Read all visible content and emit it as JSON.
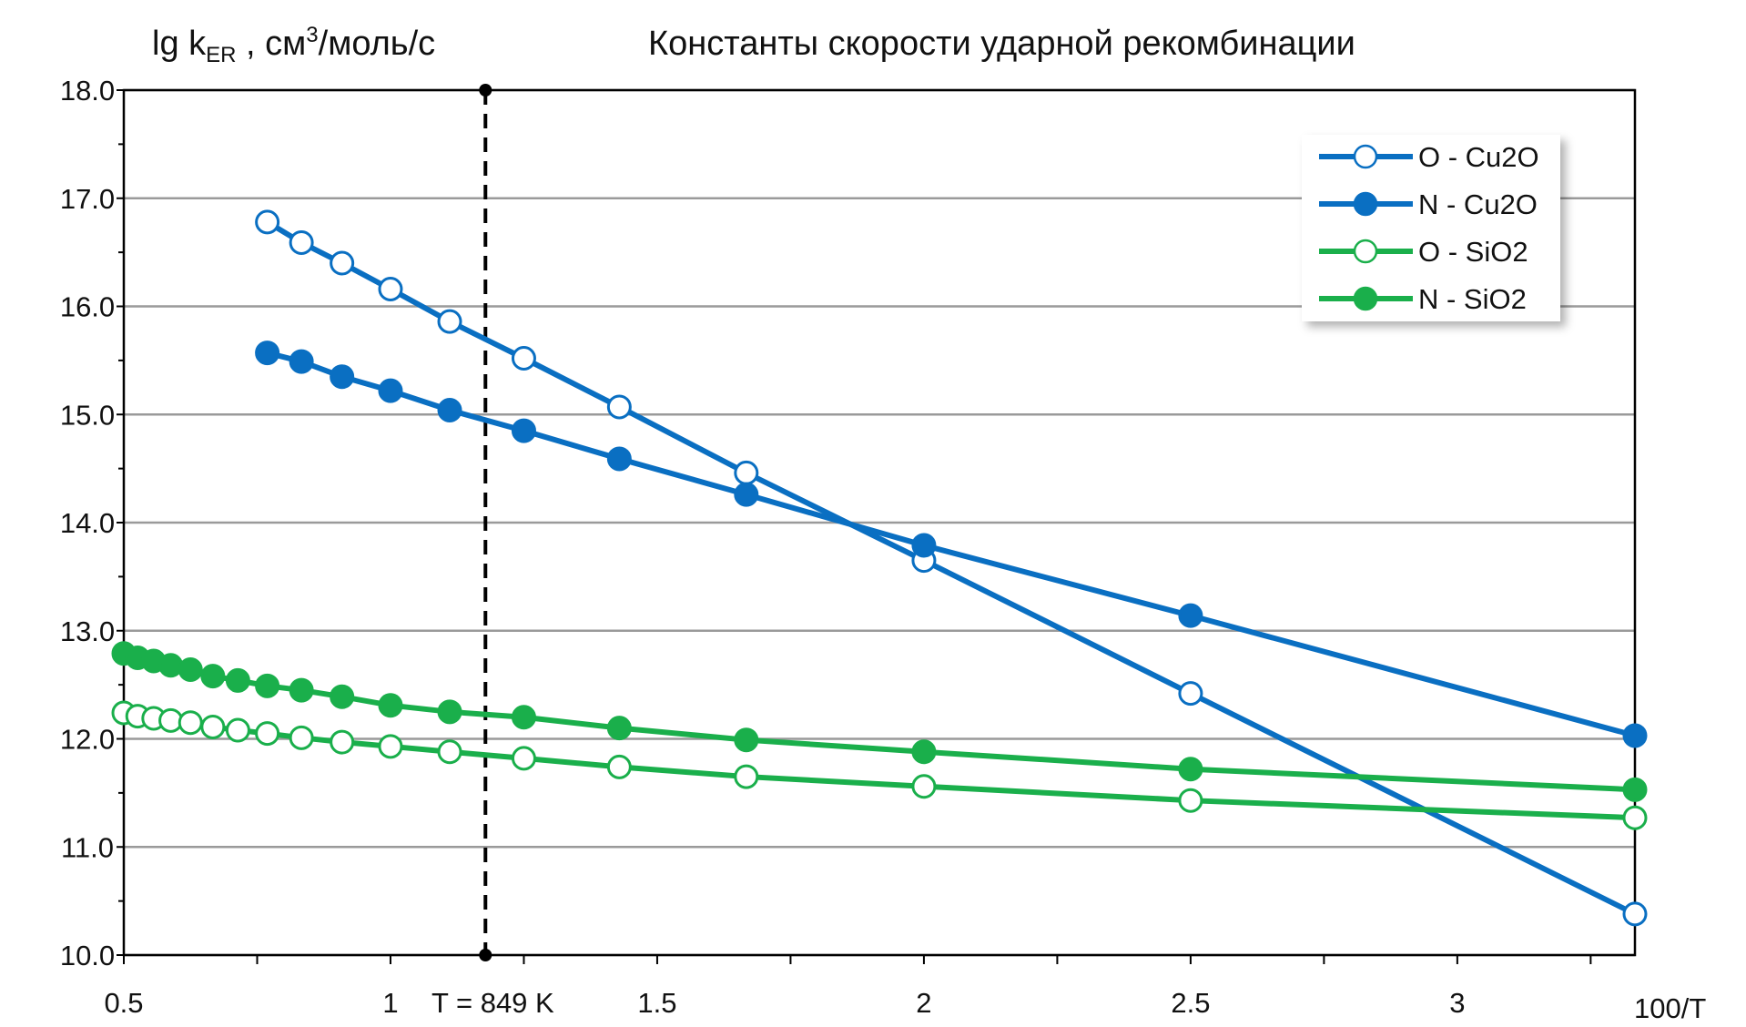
{
  "chart_data": {
    "type": "line",
    "title": "Константы скорости ударной рекомбинации",
    "ylabel_main": "lg k",
    "ylabel_sub": "ER",
    "ylabel_unit_prefix": " , см",
    "ylabel_unit_sup": "3",
    "ylabel_unit_suffix": "/моль/с",
    "xlabel": "100/T",
    "xlim": [
      0.5,
      3.333
    ],
    "ylim": [
      10.0,
      18.0
    ],
    "grid": true,
    "legend_position": "top-right",
    "x_ticks": [
      0.5,
      1,
      1.5,
      2,
      2.5,
      3
    ],
    "x_tick_labels": [
      "0.5",
      "1",
      "1.5",
      "2",
      "2.5",
      "3"
    ],
    "y_ticks": [
      10,
      11,
      12,
      13,
      14,
      15,
      16,
      17,
      18
    ],
    "y_tick_labels": [
      "10.0",
      "11.0",
      "12.0",
      "13.0",
      "14.0",
      "15.0",
      "16.0",
      "17.0",
      "18.0"
    ],
    "annotation": {
      "x": 1.178,
      "label": "T = 849 K"
    },
    "series": [
      {
        "name": "O - Cu2O",
        "color": "#0a6fc2",
        "filled": false,
        "x": [
          0.769,
          0.833,
          0.909,
          1.0,
          1.111,
          1.25,
          1.429,
          1.667,
          2.0,
          2.5,
          3.333
        ],
        "y": [
          16.78,
          16.59,
          16.4,
          16.16,
          15.86,
          15.52,
          15.07,
          14.46,
          13.65,
          12.42,
          10.38
        ]
      },
      {
        "name": "N - Cu2O",
        "color": "#0a6fc2",
        "filled": true,
        "x": [
          0.769,
          0.833,
          0.909,
          1.0,
          1.111,
          1.25,
          1.429,
          1.667,
          2.0,
          2.5,
          3.333
        ],
        "y": [
          15.57,
          15.49,
          15.35,
          15.22,
          15.04,
          14.85,
          14.59,
          14.26,
          13.79,
          13.14,
          12.03
        ]
      },
      {
        "name": "O - SiO2",
        "color": "#1aaf4b",
        "filled": false,
        "x": [
          0.5,
          0.526,
          0.556,
          0.588,
          0.625,
          0.667,
          0.714,
          0.769,
          0.833,
          0.909,
          1.0,
          1.111,
          1.25,
          1.429,
          1.667,
          2.0,
          2.5,
          3.333
        ],
        "y": [
          12.24,
          12.21,
          12.19,
          12.17,
          12.15,
          12.11,
          12.08,
          12.05,
          12.01,
          11.97,
          11.93,
          11.88,
          11.82,
          11.74,
          11.65,
          11.56,
          11.43,
          11.27
        ]
      },
      {
        "name": "N - SiO2",
        "color": "#1aaf4b",
        "filled": true,
        "x": [
          0.5,
          0.526,
          0.556,
          0.588,
          0.625,
          0.667,
          0.714,
          0.769,
          0.833,
          0.909,
          1.0,
          1.111,
          1.25,
          1.429,
          1.667,
          2.0,
          2.5,
          3.333
        ],
        "y": [
          12.79,
          12.75,
          12.72,
          12.68,
          12.64,
          12.58,
          12.54,
          12.49,
          12.45,
          12.39,
          12.31,
          12.25,
          12.2,
          12.1,
          11.99,
          11.88,
          11.72,
          11.53
        ]
      }
    ]
  }
}
